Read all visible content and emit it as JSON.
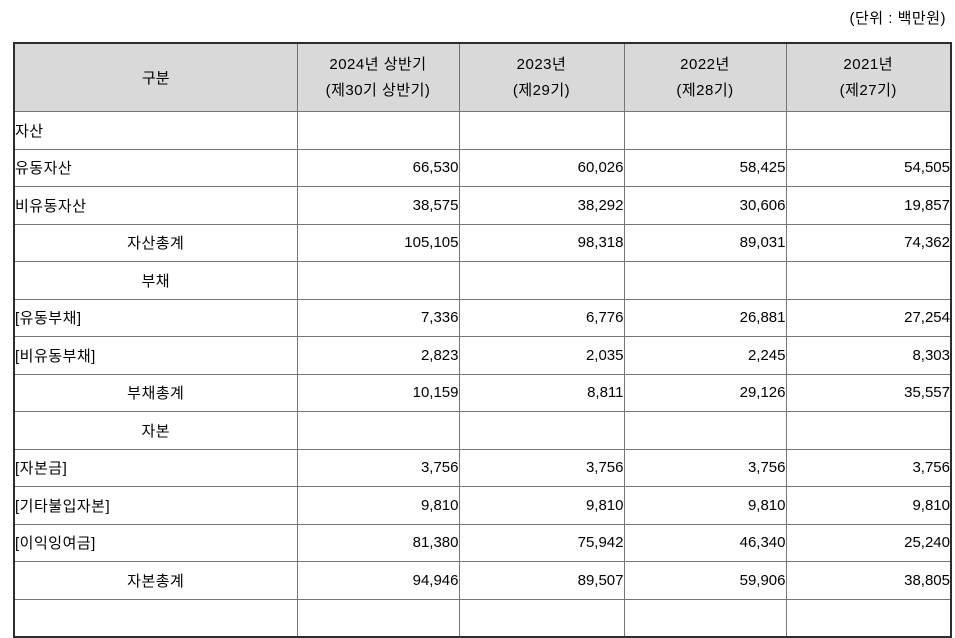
{
  "unit_label": "(단위 : 백만원)",
  "table": {
    "header": {
      "col0": "구분",
      "columns": [
        {
          "line1": "2024년 상반기",
          "line2": "(제30기 상반기)"
        },
        {
          "line1": "2023년",
          "line2": "(제29기)"
        },
        {
          "line1": "2022년",
          "line2": "(제28기)"
        },
        {
          "line1": "2021년",
          "line2": "(제27기)"
        }
      ]
    },
    "rows": [
      {
        "label": "자산",
        "align": "left",
        "values": [
          "",
          "",
          "",
          ""
        ]
      },
      {
        "label": "유동자산",
        "align": "left",
        "values": [
          "66,530",
          "60,026",
          "58,425",
          "54,505"
        ]
      },
      {
        "label": "비유동자산",
        "align": "left",
        "values": [
          "38,575",
          "38,292",
          "30,606",
          "19,857"
        ]
      },
      {
        "label": "자산총계",
        "align": "center",
        "values": [
          "105,105",
          "98,318",
          "89,031",
          "74,362"
        ]
      },
      {
        "label": "부채",
        "align": "center",
        "values": [
          "",
          "",
          "",
          ""
        ]
      },
      {
        "label": "[유동부채]",
        "align": "left",
        "values": [
          "7,336",
          "6,776",
          "26,881",
          "27,254"
        ]
      },
      {
        "label": "[비유동부채]",
        "align": "left",
        "values": [
          "2,823",
          "2,035",
          "2,245",
          "8,303"
        ]
      },
      {
        "label": "부채총계",
        "align": "center",
        "values": [
          "10,159",
          "8,811",
          "29,126",
          "35,557"
        ]
      },
      {
        "label": "자본",
        "align": "center",
        "values": [
          "",
          "",
          "",
          ""
        ]
      },
      {
        "label": "[자본금]",
        "align": "left",
        "values": [
          "3,756",
          "3,756",
          "3,756",
          "3,756"
        ]
      },
      {
        "label": "[기타불입자본]",
        "align": "left",
        "values": [
          "9,810",
          "9,810",
          "9,810",
          "9,810"
        ]
      },
      {
        "label": "[이익잉여금]",
        "align": "left",
        "values": [
          "81,380",
          "75,942",
          "46,340",
          "25,240"
        ]
      },
      {
        "label": "자본총계",
        "align": "center",
        "values": [
          "94,946",
          "89,507",
          "59,906",
          "38,805"
        ]
      }
    ]
  },
  "colors": {
    "header_bg": "#d9d9d9",
    "grid_line": "#757575",
    "outer_border": "#2d2d2d",
    "text": "#000000",
    "page_bg": "#ffffff"
  }
}
